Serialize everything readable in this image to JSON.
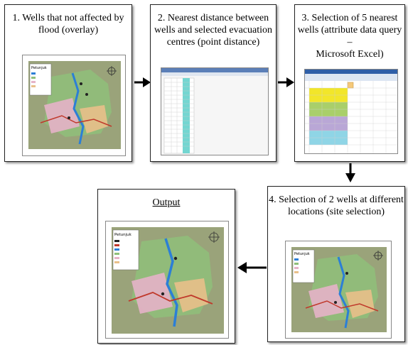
{
  "steps": [
    {
      "id": "step1",
      "title_line1": "1. Wells that not affected by",
      "title_line2": "flood (overlay)"
    },
    {
      "id": "step2",
      "title_line1": "2. Nearest distance between",
      "title_line2": "wells and selected evacuation",
      "title_line3": "centres (point distance)"
    },
    {
      "id": "step3",
      "title_line1": "3. Selection of 5 nearest",
      "title_line2": "wells (attribute data query –",
      "title_line3": "Microsoft Excel)"
    },
    {
      "id": "step4",
      "title_line1": "4. Selection of 2 wells at different",
      "title_line2": "locations (site selection)"
    },
    {
      "id": "output",
      "title_line1": "Output"
    }
  ],
  "map_legend_title": "Petunjuk",
  "colors": {
    "excel_yellow": "#f2e62a",
    "excel_green": "#a9cf6a",
    "excel_purple": "#b9a7d6",
    "excel_cyan": "#8fd5e6",
    "river_blue": "#2c7fd6",
    "road_red": "#c0392b",
    "map_green": "#8fbf7a",
    "map_pink": "#e6b3c8",
    "map_orange": "#e9c08a",
    "table_teal": "#74d6d1"
  }
}
